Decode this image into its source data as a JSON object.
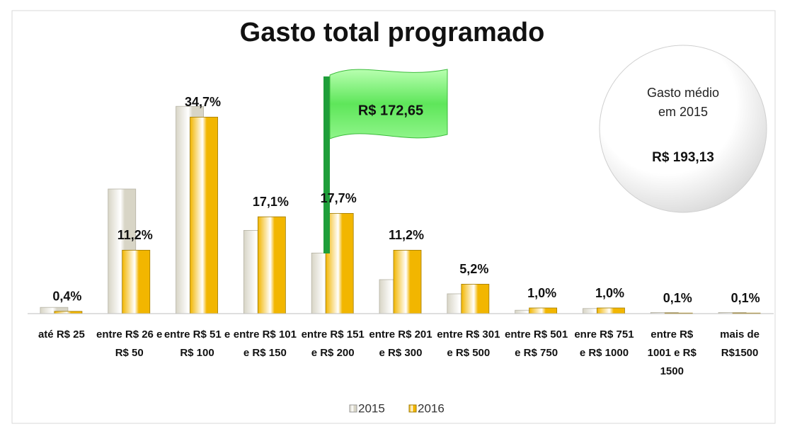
{
  "chart_data": {
    "type": "bar",
    "title": "Gasto total programado",
    "categories": [
      "até R$ 25",
      "entre R$ 26 e R$ 50",
      "entre R$ 51 e R$ 100",
      "entre R$ 101 e R$ 150",
      "entre R$ 151 e R$ 200",
      "entre R$ 201 e R$ 300",
      "entre R$ 301 e R$ 500",
      "entre R$ 501 e R$ 750",
      "enre R$ 751 e R$ 1000",
      "entre R$ 1001 e R$ 1500",
      "mais de R$1500"
    ],
    "series": [
      {
        "name": "2015",
        "color": "#d8d5c6",
        "values": [
          1.1,
          22.0,
          36.6,
          14.7,
          10.7,
          6.0,
          3.5,
          0.6,
          0.9,
          0.2,
          0.2
        ]
      },
      {
        "name": "2016",
        "color": "#f2b600",
        "values": [
          0.4,
          11.2,
          34.7,
          17.1,
          17.7,
          11.2,
          5.2,
          1.0,
          1.0,
          0.1,
          0.1
        ],
        "value_labels": [
          "0,4%",
          "11,2%",
          "34,7%",
          "17,1%",
          "17,7%",
          "11,2%",
          "5,2%",
          "1,0%",
          "1,0%",
          "0,1%",
          "0,1%"
        ]
      }
    ],
    "ylim": [
      0,
      40
    ],
    "annotations": {
      "flag": "R$ 172,65",
      "circle_text": "Gasto médio em 2015",
      "circle_value": "R$ 193,13"
    }
  }
}
